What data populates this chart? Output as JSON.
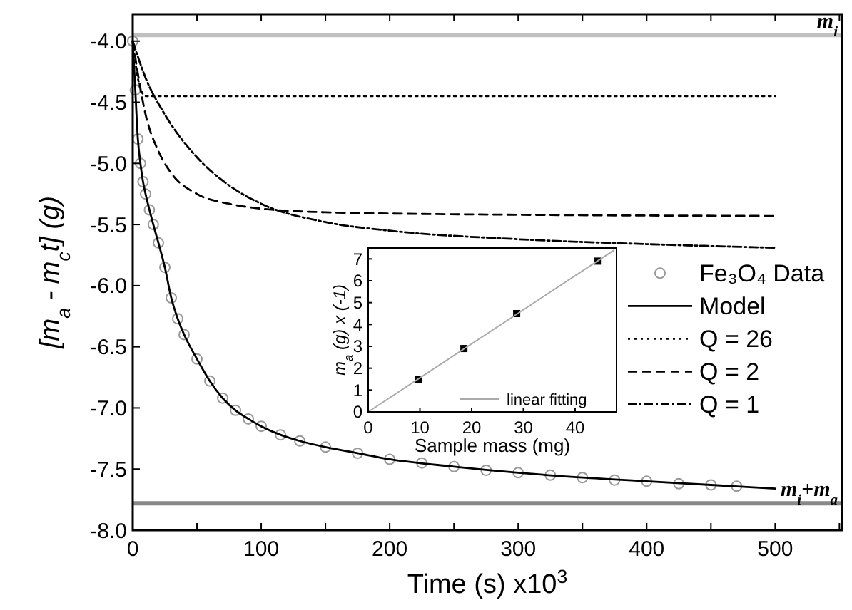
{
  "chart_data": [
    {
      "type": "line",
      "xlabel": "Time (s) x10$^{3}$",
      "ylabel": "[m$_{a}$ - m$_{c}$t] (g)",
      "xlim": [
        0,
        552
      ],
      "ylim": [
        -8.0,
        -3.78
      ],
      "xticks": [
        0,
        {
          "value": 50,
          "label": null
        },
        100,
        {
          "value": 150,
          "label": null
        },
        200,
        {
          "value": 250,
          "label": null
        },
        300,
        {
          "value": 350,
          "label": null
        },
        400,
        {
          "value": 450,
          "label": null
        },
        500,
        {
          "value": 550,
          "label": null
        }
      ],
      "yticks": [
        {
          "value": -8,
          "label": "-8.0"
        },
        -7.5,
        {
          "value": -7,
          "label": "-7.0"
        },
        -6.5,
        {
          "value": -6,
          "label": "-6.0"
        },
        -5.5,
        {
          "value": -5,
          "label": "-5.0"
        },
        -4.5,
        {
          "value": -4,
          "label": "-4.0"
        }
      ],
      "grid": false,
      "legend": "right",
      "series": [
        {
          "name": "Fe₃O₄ Data",
          "type": "scatter",
          "marker": "circle",
          "color": "#999999",
          "x": [
            0,
            2,
            4,
            6,
            8,
            10,
            13,
            16,
            20,
            25,
            30,
            35,
            40,
            50,
            60,
            70,
            80,
            90,
            100,
            115,
            130,
            150,
            175,
            200,
            225,
            250,
            275,
            300,
            325,
            350,
            375,
            400,
            425,
            450,
            470
          ],
          "values": [
            -4.0,
            -4.4,
            -4.8,
            -5.0,
            -5.15,
            -5.25,
            -5.38,
            -5.5,
            -5.65,
            -5.85,
            -6.1,
            -6.27,
            -6.4,
            -6.6,
            -6.78,
            -6.92,
            -7.02,
            -7.09,
            -7.15,
            -7.22,
            -7.27,
            -7.32,
            -7.37,
            -7.42,
            -7.45,
            -7.48,
            -7.51,
            -7.53,
            -7.55,
            -7.57,
            -7.59,
            -7.6,
            -7.62,
            -7.63,
            -7.64
          ]
        },
        {
          "name": "Model",
          "line_style": "solid",
          "color": "#000000",
          "x": [
            0,
            2,
            4,
            6,
            8,
            10,
            13,
            16,
            20,
            25,
            30,
            35,
            40,
            50,
            60,
            70,
            80,
            90,
            100,
            115,
            130,
            150,
            175,
            200,
            250,
            300,
            350,
            400,
            450,
            500
          ],
          "values": [
            -4.0,
            -4.4,
            -4.8,
            -5.0,
            -5.15,
            -5.25,
            -5.38,
            -5.5,
            -5.65,
            -5.85,
            -6.1,
            -6.27,
            -6.4,
            -6.6,
            -6.78,
            -6.92,
            -7.02,
            -7.09,
            -7.15,
            -7.22,
            -7.27,
            -7.32,
            -7.37,
            -7.42,
            -7.48,
            -7.53,
            -7.57,
            -7.6,
            -7.63,
            -7.66
          ]
        },
        {
          "name": "Q = 26",
          "line_style": "dotted",
          "color": "#000000",
          "x": [
            0,
            5,
            10,
            500
          ],
          "values": [
            -4.0,
            -4.35,
            -4.45,
            -4.45
          ]
        },
        {
          "name": "Q = 2",
          "line_style": "dashed",
          "color": "#000000",
          "x": [
            0,
            10,
            20,
            30,
            50,
            75,
            100,
            150,
            200,
            300,
            500
          ],
          "values": [
            -4.0,
            -4.6,
            -4.9,
            -5.08,
            -5.25,
            -5.33,
            -5.37,
            -5.4,
            -5.41,
            -5.42,
            -5.43
          ]
        },
        {
          "name": "Q = 1",
          "line_style": "dashdot",
          "color": "#000000",
          "x": [
            0,
            10,
            25,
            50,
            75,
            100,
            150,
            200,
            300,
            400,
            500
          ],
          "values": [
            -4.0,
            -4.3,
            -4.6,
            -4.95,
            -5.18,
            -5.33,
            -5.48,
            -5.55,
            -5.62,
            -5.66,
            -5.69
          ]
        }
      ],
      "ref_lines": [
        {
          "axis": "y",
          "value": -3.95,
          "label": "m$_{i}$",
          "color": "#c0c0c0"
        },
        {
          "axis": "y",
          "value": -7.78,
          "label": "m$_{i}$+m$_{a}$",
          "color": "#888888"
        }
      ]
    },
    {
      "type": "scatter",
      "xlabel": "Sample mass (mg)",
      "ylabel": "m$_{a}$ (g) x (-1)",
      "xlim": [
        0,
        48
      ],
      "ylim": [
        0,
        7.5
      ],
      "xticks": [
        0,
        10,
        20,
        30,
        40
      ],
      "yticks": [
        0,
        1,
        2,
        3,
        4,
        5,
        6,
        7
      ],
      "grid": false,
      "legend": "bottom right",
      "series": [
        {
          "marker": "square",
          "color": "#000000",
          "x": [
            9.7,
            18.5,
            28.7,
            44.3
          ],
          "values": [
            1.5,
            2.9,
            4.5,
            6.9
          ]
        },
        {
          "name": "linear fitting",
          "type": "line",
          "line_style": "solid",
          "color": "#aaaaaa",
          "x": [
            0,
            47.5
          ],
          "values": [
            0,
            7.4
          ]
        }
      ]
    }
  ]
}
